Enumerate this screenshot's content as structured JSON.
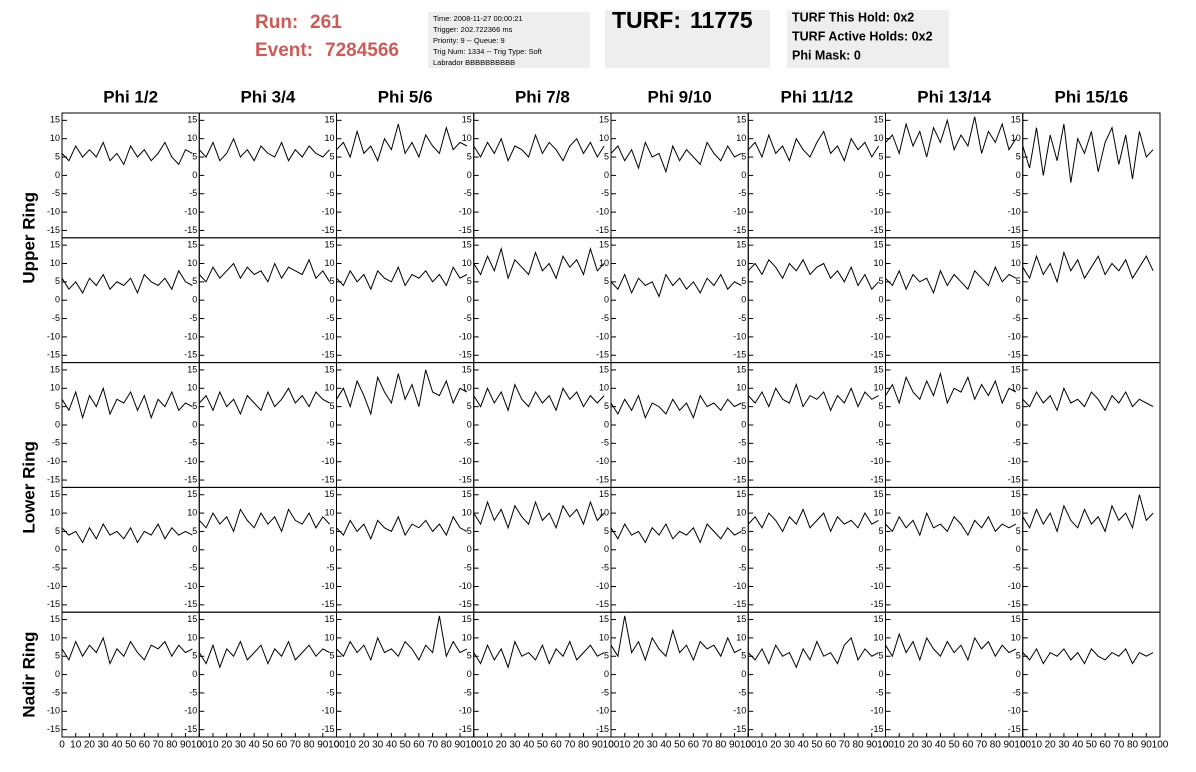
{
  "header": {
    "run_label": "Run:",
    "run": 261,
    "event_label": "Event:",
    "event": 7284566,
    "info": [
      "Time: 2008-11-27 00:00:21",
      "Trigger: 202.722366 ms",
      "Priority: 9 -- Queue: 9",
      "Trig Num: 1334 -- Trig Type: Soft",
      "Labrador BBBBBBBBBB"
    ],
    "turf_label": "TURF:",
    "turf": 11775,
    "turf_info": [
      "TURF This Hold: 0x2",
      "TURF Active Holds: 0x2",
      "Phi Mask: 0"
    ]
  },
  "plots": {
    "columns": [
      "Phi 1/2",
      "Phi 3/4",
      "Phi 5/6",
      "Phi 7/8",
      "Phi 9/10",
      "Phi 11/12",
      "Phi 13/14",
      "Phi 15/16"
    ],
    "ring_labels": [
      "Upper Ring",
      "Lower Ring",
      "Nadir Ring"
    ],
    "xlim": [
      0,
      100
    ],
    "xticks": [
      0,
      10,
      20,
      30,
      40,
      50,
      60,
      70,
      80,
      90,
      100
    ],
    "ylim": [
      -17,
      17
    ],
    "yticks": [
      -15,
      -10,
      -5,
      0,
      5,
      10,
      15
    ],
    "x": [
      0,
      5,
      10,
      15,
      20,
      25,
      30,
      35,
      40,
      45,
      50,
      55,
      60,
      65,
      70,
      75,
      80,
      85,
      90,
      95
    ],
    "traces": [
      [
        [
          6,
          4,
          8,
          5,
          7,
          5,
          9,
          4,
          6,
          3,
          8,
          5,
          7,
          4,
          6,
          9,
          5,
          3,
          7,
          6
        ],
        [
          7,
          5,
          9,
          4,
          6,
          10,
          5,
          7,
          4,
          8,
          6,
          5,
          9,
          4,
          7,
          5,
          8,
          6,
          5,
          7
        ],
        [
          7,
          9,
          5,
          12,
          6,
          8,
          4,
          10,
          7,
          14,
          6,
          9,
          5,
          11,
          8,
          6,
          13,
          7,
          9,
          8
        ],
        [
          8,
          5,
          9,
          6,
          10,
          4,
          8,
          7,
          5,
          11,
          6,
          9,
          7,
          4,
          8,
          10,
          6,
          9,
          5,
          8
        ],
        [
          6,
          8,
          4,
          7,
          2,
          9,
          5,
          6,
          1,
          8,
          4,
          7,
          5,
          3,
          9,
          6,
          4,
          8,
          5,
          6
        ],
        [
          7,
          9,
          5,
          11,
          6,
          8,
          4,
          10,
          7,
          5,
          9,
          12,
          6,
          8,
          4,
          10,
          7,
          9,
          5,
          8
        ],
        [
          9,
          11,
          6,
          14,
          8,
          12,
          5,
          13,
          9,
          15,
          7,
          11,
          8,
          16,
          6,
          12,
          9,
          14,
          7,
          10
        ],
        [
          8,
          2,
          13,
          0,
          11,
          4,
          14,
          -2,
          10,
          6,
          12,
          1,
          9,
          13,
          3,
          11,
          -1,
          12,
          5,
          7
        ]
      ],
      [
        [
          6,
          3,
          5,
          2,
          6,
          4,
          7,
          3,
          5,
          4,
          6,
          2,
          7,
          5,
          4,
          6,
          3,
          8,
          5,
          4
        ],
        [
          7,
          5,
          9,
          6,
          8,
          10,
          6,
          9,
          7,
          8,
          5,
          10,
          6,
          9,
          8,
          7,
          11,
          6,
          8,
          5
        ],
        [
          6,
          4,
          8,
          5,
          7,
          3,
          8,
          6,
          5,
          9,
          4,
          7,
          6,
          8,
          5,
          7,
          4,
          9,
          6,
          7
        ],
        [
          10,
          7,
          12,
          8,
          14,
          6,
          11,
          9,
          7,
          13,
          8,
          10,
          6,
          12,
          9,
          11,
          7,
          14,
          8,
          10
        ],
        [
          5,
          3,
          7,
          2,
          6,
          4,
          5,
          1,
          7,
          4,
          6,
          3,
          5,
          2,
          6,
          4,
          7,
          3,
          5,
          4
        ],
        [
          8,
          10,
          7,
          11,
          9,
          6,
          10,
          8,
          11,
          7,
          9,
          10,
          6,
          8,
          5,
          9,
          4,
          7,
          3,
          5
        ],
        [
          6,
          4,
          8,
          3,
          7,
          5,
          6,
          2,
          8,
          4,
          7,
          5,
          3,
          8,
          6,
          4,
          9,
          5,
          7,
          6
        ],
        [
          9,
          6,
          12,
          7,
          10,
          5,
          13,
          8,
          11,
          6,
          9,
          12,
          7,
          10,
          8,
          11,
          6,
          9,
          12,
          8
        ]
      ],
      [
        [
          7,
          4,
          9,
          2,
          8,
          5,
          10,
          3,
          7,
          6,
          9,
          4,
          8,
          2,
          7,
          5,
          9,
          4,
          6,
          5
        ],
        [
          6,
          8,
          4,
          9,
          5,
          7,
          3,
          8,
          6,
          4,
          9,
          5,
          7,
          10,
          6,
          8,
          5,
          9,
          7,
          6
        ],
        [
          7,
          10,
          5,
          12,
          8,
          3,
          13,
          9,
          6,
          14,
          7,
          11,
          5,
          15,
          9,
          8,
          12,
          6,
          10,
          9
        ],
        [
          8,
          5,
          10,
          6,
          9,
          4,
          11,
          7,
          5,
          9,
          6,
          8,
          4,
          10,
          7,
          9,
          5,
          8,
          6,
          8
        ],
        [
          6,
          3,
          7,
          4,
          8,
          2,
          6,
          5,
          3,
          7,
          4,
          6,
          2,
          8,
          5,
          6,
          4,
          7,
          5,
          6
        ],
        [
          8,
          6,
          9,
          5,
          10,
          7,
          6,
          11,
          5,
          8,
          7,
          9,
          4,
          8,
          6,
          10,
          5,
          9,
          7,
          8
        ],
        [
          8,
          11,
          6,
          13,
          9,
          7,
          12,
          8,
          14,
          6,
          10,
          9,
          13,
          7,
          11,
          8,
          12,
          6,
          10,
          9
        ],
        [
          7,
          5,
          9,
          6,
          8,
          4,
          10,
          6,
          7,
          5,
          9,
          7,
          4,
          8,
          6,
          9,
          5,
          7,
          6,
          5
        ]
      ],
      [
        [
          6,
          4,
          5,
          2,
          6,
          3,
          7,
          4,
          5,
          3,
          6,
          2,
          5,
          4,
          7,
          3,
          6,
          4,
          5,
          4
        ],
        [
          8,
          6,
          10,
          7,
          9,
          5,
          11,
          8,
          6,
          10,
          7,
          9,
          5,
          11,
          8,
          7,
          10,
          6,
          9,
          7
        ],
        [
          6,
          4,
          8,
          5,
          7,
          3,
          8,
          6,
          5,
          9,
          4,
          7,
          6,
          8,
          5,
          7,
          4,
          9,
          6,
          5
        ],
        [
          10,
          7,
          13,
          8,
          11,
          6,
          12,
          9,
          7,
          13,
          8,
          10,
          6,
          12,
          9,
          11,
          7,
          13,
          8,
          10
        ],
        [
          6,
          3,
          7,
          4,
          5,
          2,
          6,
          4,
          7,
          3,
          5,
          4,
          6,
          2,
          7,
          5,
          3,
          6,
          4,
          5
        ],
        [
          7,
          9,
          6,
          10,
          8,
          5,
          9,
          7,
          11,
          6,
          8,
          10,
          5,
          9,
          7,
          8,
          6,
          10,
          7,
          8
        ],
        [
          7,
          5,
          9,
          6,
          8,
          4,
          10,
          6,
          7,
          5,
          9,
          7,
          4,
          8,
          6,
          9,
          5,
          7,
          6,
          7
        ],
        [
          9,
          6,
          11,
          7,
          10,
          5,
          12,
          8,
          6,
          11,
          7,
          9,
          5,
          12,
          8,
          10,
          6,
          15,
          8,
          10
        ]
      ],
      [
        [
          7,
          4,
          9,
          5,
          8,
          6,
          10,
          3,
          7,
          5,
          9,
          6,
          4,
          8,
          7,
          9,
          5,
          8,
          6,
          7
        ],
        [
          6,
          3,
          8,
          2,
          7,
          5,
          9,
          4,
          6,
          8,
          3,
          7,
          5,
          9,
          4,
          6,
          8,
          5,
          7,
          6
        ],
        [
          7,
          5,
          9,
          6,
          8,
          4,
          10,
          6,
          7,
          5,
          9,
          7,
          4,
          8,
          6,
          16,
          5,
          9,
          6,
          7
        ],
        [
          6,
          3,
          8,
          4,
          7,
          2,
          9,
          5,
          6,
          4,
          8,
          3,
          7,
          5,
          9,
          4,
          6,
          8,
          5,
          6
        ],
        [
          8,
          5,
          16,
          6,
          9,
          4,
          10,
          7,
          5,
          12,
          6,
          8,
          4,
          9,
          7,
          8,
          5,
          10,
          6,
          7
        ],
        [
          6,
          4,
          7,
          3,
          8,
          5,
          6,
          2,
          7,
          4,
          9,
          5,
          6,
          3,
          8,
          10,
          4,
          7,
          5,
          6
        ],
        [
          8,
          5,
          11,
          6,
          9,
          4,
          10,
          7,
          5,
          9,
          6,
          8,
          4,
          10,
          7,
          9,
          5,
          8,
          6,
          7
        ],
        [
          6,
          4,
          7,
          3,
          6,
          5,
          7,
          4,
          6,
          3,
          7,
          5,
          4,
          6,
          5,
          7,
          3,
          6,
          5,
          6
        ]
      ]
    ]
  }
}
